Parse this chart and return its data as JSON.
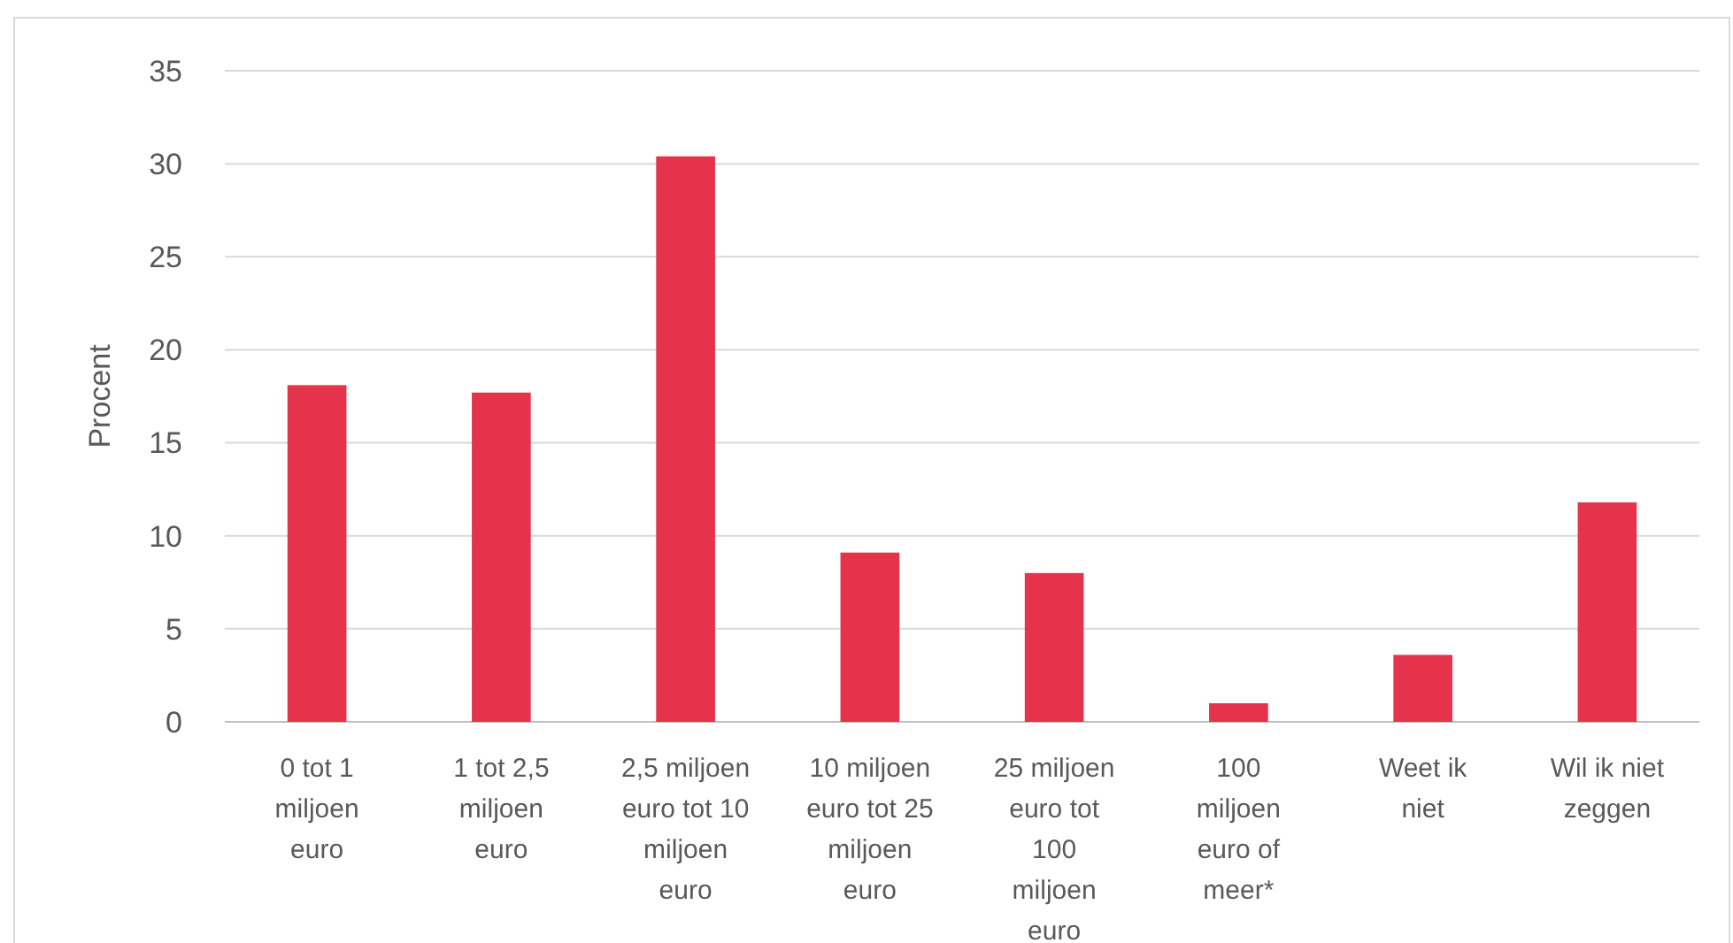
{
  "chart_data": {
    "type": "bar",
    "ylabel": "Procent",
    "categories": [
      "0 tot 1 miljoen euro",
      "1 tot 2,5 miljoen euro",
      "2,5 miljoen euro tot 10 miljoen euro",
      "10 miljoen euro tot 25 miljoen euro",
      "25 miljoen euro tot 100 miljoen euro",
      "100 miljoen euro of meer*",
      "Weet ik niet",
      "Wil ik niet zeggen"
    ],
    "values": [
      18.1,
      17.7,
      30.4,
      9.1,
      8.0,
      1.0,
      3.6,
      11.8
    ],
    "color": "#e5334b",
    "ylim": [
      0,
      35
    ],
    "yticks": [
      0,
      5,
      10,
      15,
      20,
      25,
      30,
      35
    ],
    "grid": "y"
  }
}
